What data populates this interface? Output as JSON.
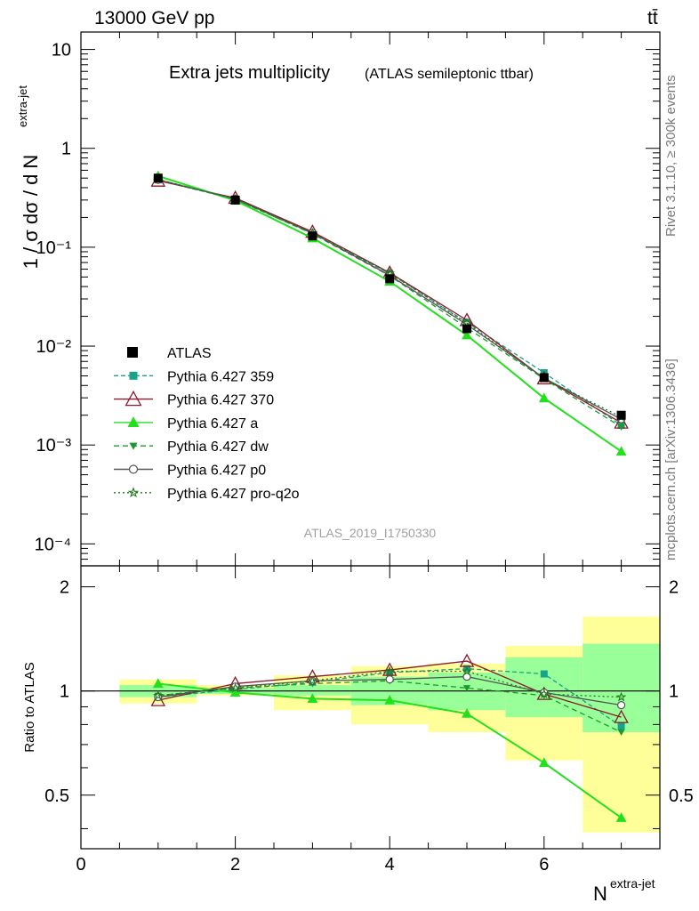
{
  "header": {
    "left": "13000 GeV pp",
    "right": "tt̄"
  },
  "side_labels": {
    "top": "Rivet 3.1.10, ≥ 300k events",
    "bottom": "mcplots.cern.ch [arXiv:1306.3436]"
  },
  "chart_data": {
    "type": "line",
    "title": "Extra jets multiplicity",
    "subtitle": "(ATLAS semileptonic ttbar)",
    "watermark": "ATLAS_2019_I1750330",
    "xlabel": "N",
    "xlabel_sup": "extra-jet",
    "ylabel": "1 / σ dσ / d N",
    "ylabel_sup": "extra-jet",
    "ratio_ylabel": "Ratio to ATLAS",
    "xlim": [
      0,
      7.5
    ],
    "ylim": [
      6e-05,
      15
    ],
    "yscale": "log",
    "ratio_ylim": [
      0.35,
      2.3
    ],
    "x_ticks": [
      "0",
      "2",
      "4",
      "6"
    ],
    "y_ticks": [
      "10",
      "1",
      "10⁻¹",
      "10⁻²",
      "10⁻³",
      "10⁻⁴"
    ],
    "ratio_ticks_left": [
      "2",
      "1",
      "0.5"
    ],
    "ratio_ticks_right": [
      "2",
      "1",
      "0.5"
    ],
    "legend_position": "middle-left",
    "x": [
      1,
      2,
      3,
      4,
      5,
      6,
      7
    ],
    "bins": [
      [
        0.5,
        1.5
      ],
      [
        1.5,
        2.5
      ],
      [
        2.5,
        3.5
      ],
      [
        3.5,
        4.5
      ],
      [
        4.5,
        5.5
      ],
      [
        5.5,
        6.5
      ],
      [
        6.5,
        7.5
      ]
    ],
    "atlas": {
      "name": "ATLAS",
      "values": [
        0.5,
        0.3,
        0.13,
        0.048,
        0.015,
        0.0048,
        0.002
      ],
      "band_inner": [
        [
          0.96,
          1.04
        ],
        [
          0.98,
          1.02
        ],
        [
          0.97,
          1.04
        ],
        [
          0.91,
          1.1
        ],
        [
          0.88,
          1.13
        ],
        [
          0.84,
          1.25
        ],
        [
          0.76,
          1.37
        ]
      ],
      "band_outer": [
        [
          0.92,
          1.08
        ],
        [
          0.97,
          1.04
        ],
        [
          0.88,
          1.11
        ],
        [
          0.8,
          1.18
        ],
        [
          0.76,
          1.2
        ],
        [
          0.63,
          1.35
        ],
        [
          0.39,
          1.64
        ]
      ]
    },
    "series": [
      {
        "name": "Pythia 6.427 359",
        "color": "#1aa38a",
        "dash": "5,3",
        "marker": "square",
        "ratio": [
          0.96,
          1.01,
          1.06,
          1.13,
          1.16,
          1.12,
          0.79
        ]
      },
      {
        "name": "Pythia 6.427 370",
        "color": "#8b1a2b",
        "dash": "",
        "marker": "triangle-open",
        "ratio": [
          0.94,
          1.05,
          1.1,
          1.15,
          1.22,
          0.98,
          0.84
        ]
      },
      {
        "name": "Pythia 6.427 a",
        "color": "#22e01c",
        "dash": "",
        "marker": "triangle",
        "ratio": [
          1.05,
          0.99,
          0.95,
          0.94,
          0.86,
          0.62,
          0.43
        ]
      },
      {
        "name": "Pythia 6.427 dw",
        "color": "#1c9a2e",
        "dash": "6,4",
        "marker": "triangle-down",
        "ratio": [
          0.97,
          1.02,
          1.05,
          1.07,
          1.02,
          0.97,
          0.76
        ]
      },
      {
        "name": "Pythia 6.427 p0",
        "color": "#555555",
        "dash": "",
        "marker": "circle-open",
        "ratio": [
          0.96,
          1.03,
          1.07,
          1.08,
          1.1,
          0.99,
          0.91
        ]
      },
      {
        "name": "Pythia 6.427 pro-q2o",
        "color": "#1f7a1f",
        "dash": "2,3",
        "marker": "star-open",
        "ratio": [
          0.97,
          1.02,
          1.07,
          1.14,
          1.14,
          0.98,
          0.96
        ]
      }
    ]
  }
}
